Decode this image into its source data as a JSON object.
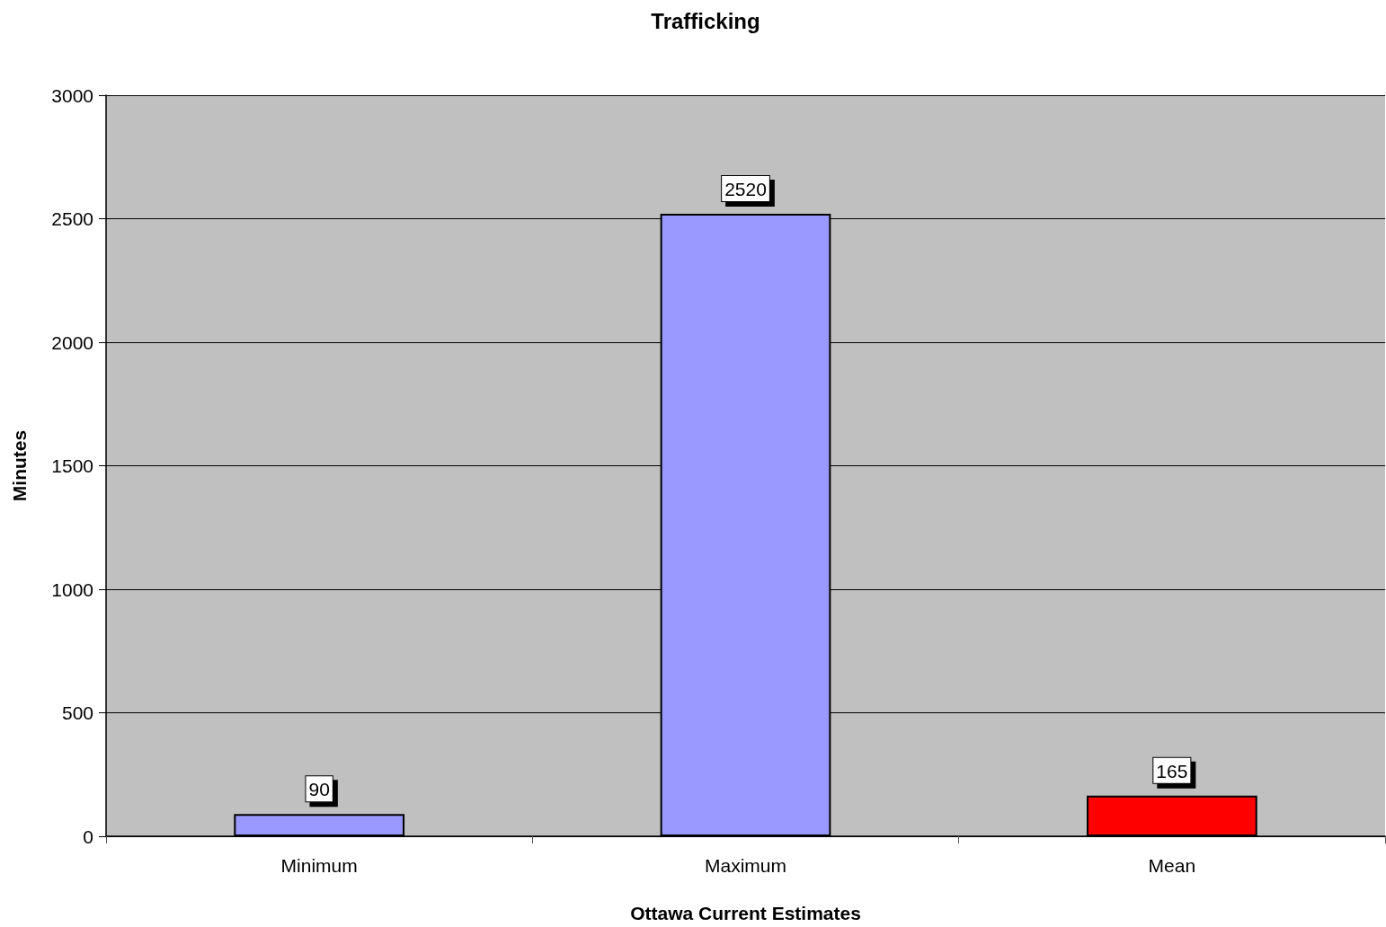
{
  "chart_data": {
    "type": "bar",
    "title": "Trafficking",
    "xlabel": "Ottawa Current Estimates",
    "ylabel": "Minutes",
    "categories": [
      "Minimum",
      "Maximum",
      "Mean"
    ],
    "values": [
      90,
      2520,
      165
    ],
    "colors": [
      "#9999ff",
      "#9999ff",
      "#ff0000"
    ],
    "ylim": [
      0,
      3000
    ],
    "yticks": [
      0,
      500,
      1000,
      1500,
      2000,
      2500,
      3000
    ],
    "grid": true,
    "data_labels": true
  }
}
